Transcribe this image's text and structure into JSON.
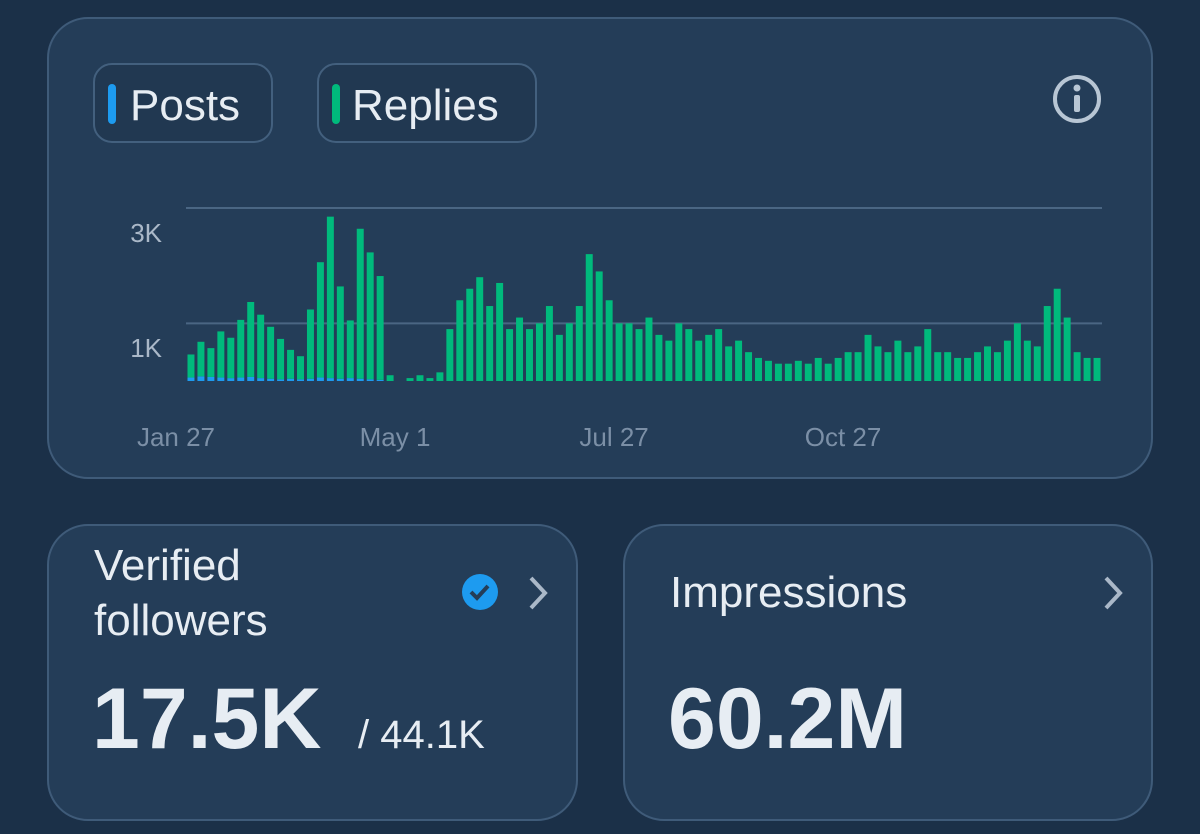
{
  "chart_data": {
    "type": "bar",
    "stacked": true,
    "categories": [
      "Jan 27",
      null,
      null,
      null,
      null,
      null,
      null,
      null,
      null,
      null,
      null,
      null,
      null,
      null,
      null,
      null,
      null,
      null,
      null,
      null,
      null,
      null,
      "May 1",
      null,
      null,
      null,
      null,
      null,
      null,
      null,
      null,
      null,
      null,
      null,
      null,
      null,
      null,
      null,
      null,
      null,
      null,
      null,
      null,
      null,
      "Jul 27",
      null,
      null,
      null,
      null,
      null,
      null,
      null,
      null,
      null,
      null,
      null,
      null,
      null,
      null,
      null,
      null,
      null,
      null,
      null,
      null,
      null,
      null,
      "Oct 27",
      null,
      null,
      null,
      null,
      null,
      null,
      null,
      null,
      null,
      null,
      null,
      null,
      null,
      null,
      null,
      null,
      null,
      null,
      null,
      null,
      null,
      null,
      null,
      null
    ],
    "series": [
      {
        "name": "Posts",
        "color": "#1d9bf0",
        "values": [
          60,
          80,
          70,
          60,
          50,
          60,
          70,
          50,
          40,
          30,
          40,
          30,
          40,
          60,
          50,
          40,
          50,
          40,
          30,
          20,
          0,
          0,
          0,
          0,
          0,
          0,
          0,
          0,
          0,
          0,
          0,
          0,
          0,
          0,
          0,
          0,
          0,
          0,
          0,
          0,
          0,
          0,
          0,
          0,
          0,
          0,
          0,
          0,
          0,
          0,
          0,
          0,
          0,
          0,
          0,
          0,
          0,
          0,
          0,
          0,
          0,
          0,
          0,
          0,
          0,
          0,
          0,
          0,
          0,
          0,
          0,
          0,
          0,
          0,
          0,
          0,
          0,
          0,
          0,
          0,
          0,
          0,
          0,
          0,
          0,
          0,
          0,
          0,
          0,
          0,
          0,
          0
        ]
      },
      {
        "name": "Replies",
        "color": "#00ba7c",
        "values": [
          400,
          600,
          500,
          800,
          700,
          1000,
          1300,
          1100,
          900,
          700,
          500,
          400,
          1200,
          2000,
          2800,
          1600,
          1000,
          2600,
          2200,
          1800,
          100,
          0,
          50,
          100,
          50,
          150,
          900,
          1400,
          1600,
          1800,
          1300,
          1700,
          900,
          1100,
          900,
          1000,
          1300,
          800,
          1000,
          1300,
          2200,
          1900,
          1400,
          1000,
          1000,
          900,
          1100,
          800,
          700,
          1000,
          900,
          700,
          800,
          900,
          600,
          700,
          500,
          400,
          350,
          300,
          300,
          350,
          300,
          400,
          300,
          400,
          500,
          500,
          800,
          600,
          500,
          700,
          500,
          600,
          900,
          500,
          500,
          400,
          400,
          500,
          600,
          500,
          700,
          1000,
          700,
          600,
          1300,
          1600,
          1100,
          500,
          400,
          400
        ]
      }
    ],
    "ylim": [
      0,
      3000
    ],
    "yticks": [
      {
        "value": 1000,
        "label": "1K"
      },
      {
        "value": 3000,
        "label": "3K"
      }
    ],
    "grid": true
  },
  "cards": [
    {
      "title_lines": [
        "Verified",
        "followers"
      ],
      "value": "17.5K",
      "total": "/ 44.1K"
    },
    {
      "title_lines": [
        "Impressions"
      ],
      "value": "60.2M"
    }
  ]
}
